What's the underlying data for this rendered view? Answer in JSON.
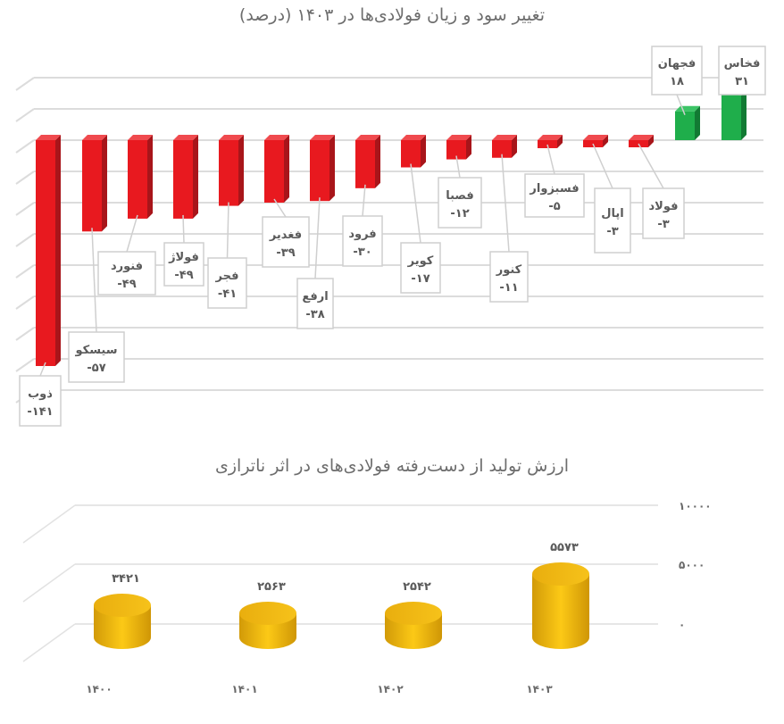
{
  "chart_data": [
    {
      "type": "bar",
      "title": "تغییر سود و زیان فولادی‌ها در ۱۴۰۳ (درصد)",
      "xlabel": "",
      "ylabel": "درصد",
      "categories": [
        "ذوب",
        "سیسکو",
        "فنورد",
        "فولاژ",
        "فجر",
        "فغدیر",
        "ارفع",
        "فرود",
        "کویر",
        "فصبا",
        "کنور",
        "فسبزوار",
        "اپال",
        "فولاد",
        "فجهان",
        "فخاس"
      ],
      "value_labels": [
        "-۱۴۱",
        "-۵۷",
        "-۴۹",
        "-۴۹",
        "-۴۱",
        "-۳۹",
        "-۳۸",
        "-۳۰",
        "-۱۷",
        "-۱۲",
        "-۱۱",
        "-۵",
        "-۳",
        "-۳",
        "۱۸",
        "۳۱"
      ],
      "values": [
        -141,
        -57,
        -49,
        -49,
        -41,
        -39,
        -38,
        -30,
        -17,
        -12,
        -11,
        -5,
        -3,
        -3,
        18,
        31
      ],
      "colors": {
        "negative": "#e8191f",
        "positive": "#1fae4b"
      },
      "grid": true,
      "legend": null
    },
    {
      "type": "bar",
      "title": "ارزش تولید از دست‌رفته فولادی‌های در اثر ناترازی",
      "xlabel": "",
      "ylabel": "",
      "categories": [
        "۱۴۰۰",
        "۱۴۰۱",
        "۱۴۰۲",
        "۱۴۰۳"
      ],
      "value_labels": [
        "۳۴۲۱",
        "۲۵۶۳",
        "۲۵۴۲",
        "۵۵۷۳"
      ],
      "values": [
        3421,
        2563,
        2542,
        5573
      ],
      "y_ticks": [
        "۱۰۰۰۰",
        "۵۰۰۰",
        "۰"
      ],
      "ylim": [
        0,
        10000
      ],
      "colors": {
        "bar": "#f2b705"
      },
      "grid": true,
      "legend": null
    }
  ],
  "titles": {
    "chart1": "تغییر سود و زیان فولادی‌ها در ۱۴۰۳ (درصد)",
    "chart2": "ارزش تولید از دست‌رفته فولادی‌های در اثر ناترازی"
  }
}
